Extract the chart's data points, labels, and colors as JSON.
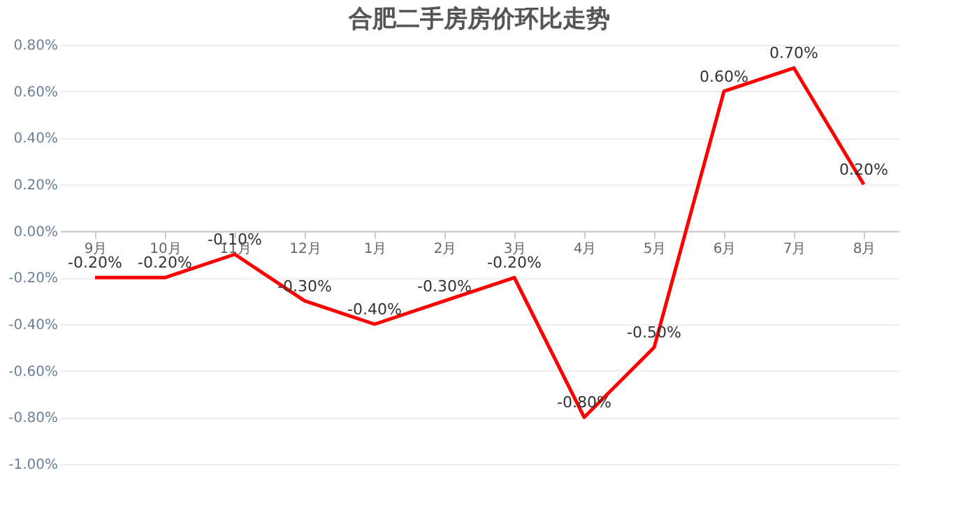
{
  "chart_data": {
    "type": "line",
    "title": "合肥二手房房价环比走势",
    "categories": [
      "9月",
      "10月",
      "11月",
      "12月",
      "1月",
      "2月",
      "3月",
      "4月",
      "5月",
      "6月",
      "7月",
      "8月"
    ],
    "series": [
      {
        "color": "#ff0000",
        "values": [
          -0.2,
          -0.2,
          -0.1,
          -0.3,
          -0.4,
          -0.3,
          -0.2,
          -0.8,
          -0.5,
          0.6,
          0.7,
          0.2
        ],
        "value_labels": [
          "-0.20%",
          "-0.20%",
          "-0.10%",
          "-0.30%",
          "-0.40%",
          "-0.30%",
          "-0.20%",
          "-0.80%",
          "-0.50%",
          "0.60%",
          "0.70%",
          "0.20%"
        ]
      }
    ],
    "ylim": [
      -1.0,
      0.8
    ],
    "yticks": [
      {
        "value": -1.0,
        "label": "-1.00%"
      },
      {
        "value": -0.8,
        "label": "-0.80%"
      },
      {
        "value": -0.6,
        "label": "-0.60%"
      },
      {
        "value": -0.4,
        "label": "-0.40%"
      },
      {
        "value": -0.2,
        "label": "-0.20%"
      },
      {
        "value": 0.0,
        "label": "0.00%"
      },
      {
        "value": 0.2,
        "label": "0.20%"
      },
      {
        "value": 0.4,
        "label": "0.40%"
      },
      {
        "value": 0.6,
        "label": "0.60%"
      },
      {
        "value": 0.8,
        "label": "0.80%"
      }
    ],
    "grid": "y",
    "marker": "none",
    "line_style": "solid"
  }
}
